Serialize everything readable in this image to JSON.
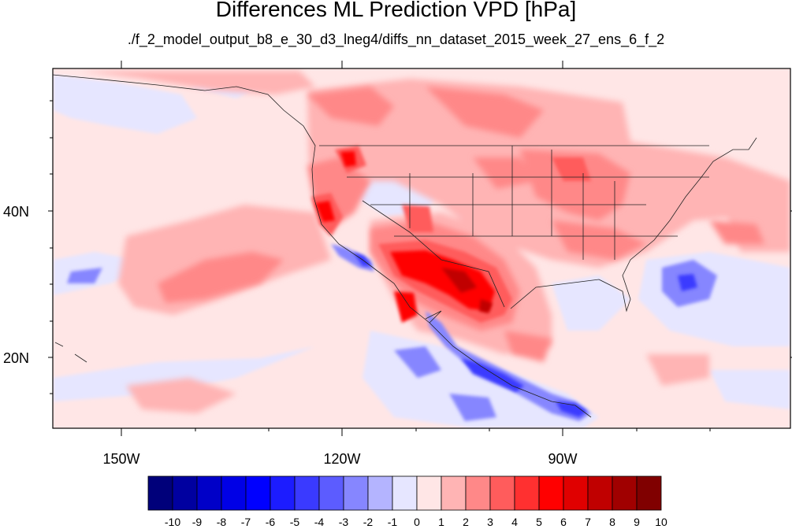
{
  "title": "Differences ML Prediction VPD [hPa]",
  "subtitle": "./f_2_model_output_b8_e_30_d3_lneg4/diffs_nn_dataset_2015_week_27_ens_6_f_2",
  "map": {
    "lon_range": [
      -160,
      -61
    ],
    "lat_range": [
      11,
      59
    ],
    "lon_ticks": [
      {
        "value": -150,
        "label": "150W"
      },
      {
        "value": -120,
        "label": "120W"
      },
      {
        "value": -90,
        "label": "90W"
      }
    ],
    "lat_ticks": [
      {
        "value": 40,
        "label": "40N"
      },
      {
        "value": 20,
        "label": "20N"
      }
    ]
  },
  "colorbar": {
    "labels": [
      "-10",
      "-9",
      "-8",
      "-7",
      "-6",
      "-5",
      "-4",
      "-3",
      "-2",
      "-1",
      "0",
      "1",
      "2",
      "3",
      "4",
      "5",
      "6",
      "7",
      "8",
      "9",
      "10"
    ],
    "colors": [
      "#00007a",
      "#0000a0",
      "#0000c8",
      "#0000e6",
      "#0000ff",
      "#1c1cff",
      "#3a3aff",
      "#5c5cff",
      "#8686ff",
      "#b4b4ff",
      "#e6e6ff",
      "#ffe6e6",
      "#ffb4b4",
      "#ff8888",
      "#ff5c5c",
      "#ff3030",
      "#ff0000",
      "#e00000",
      "#c00000",
      "#a00000",
      "#800000"
    ]
  }
}
